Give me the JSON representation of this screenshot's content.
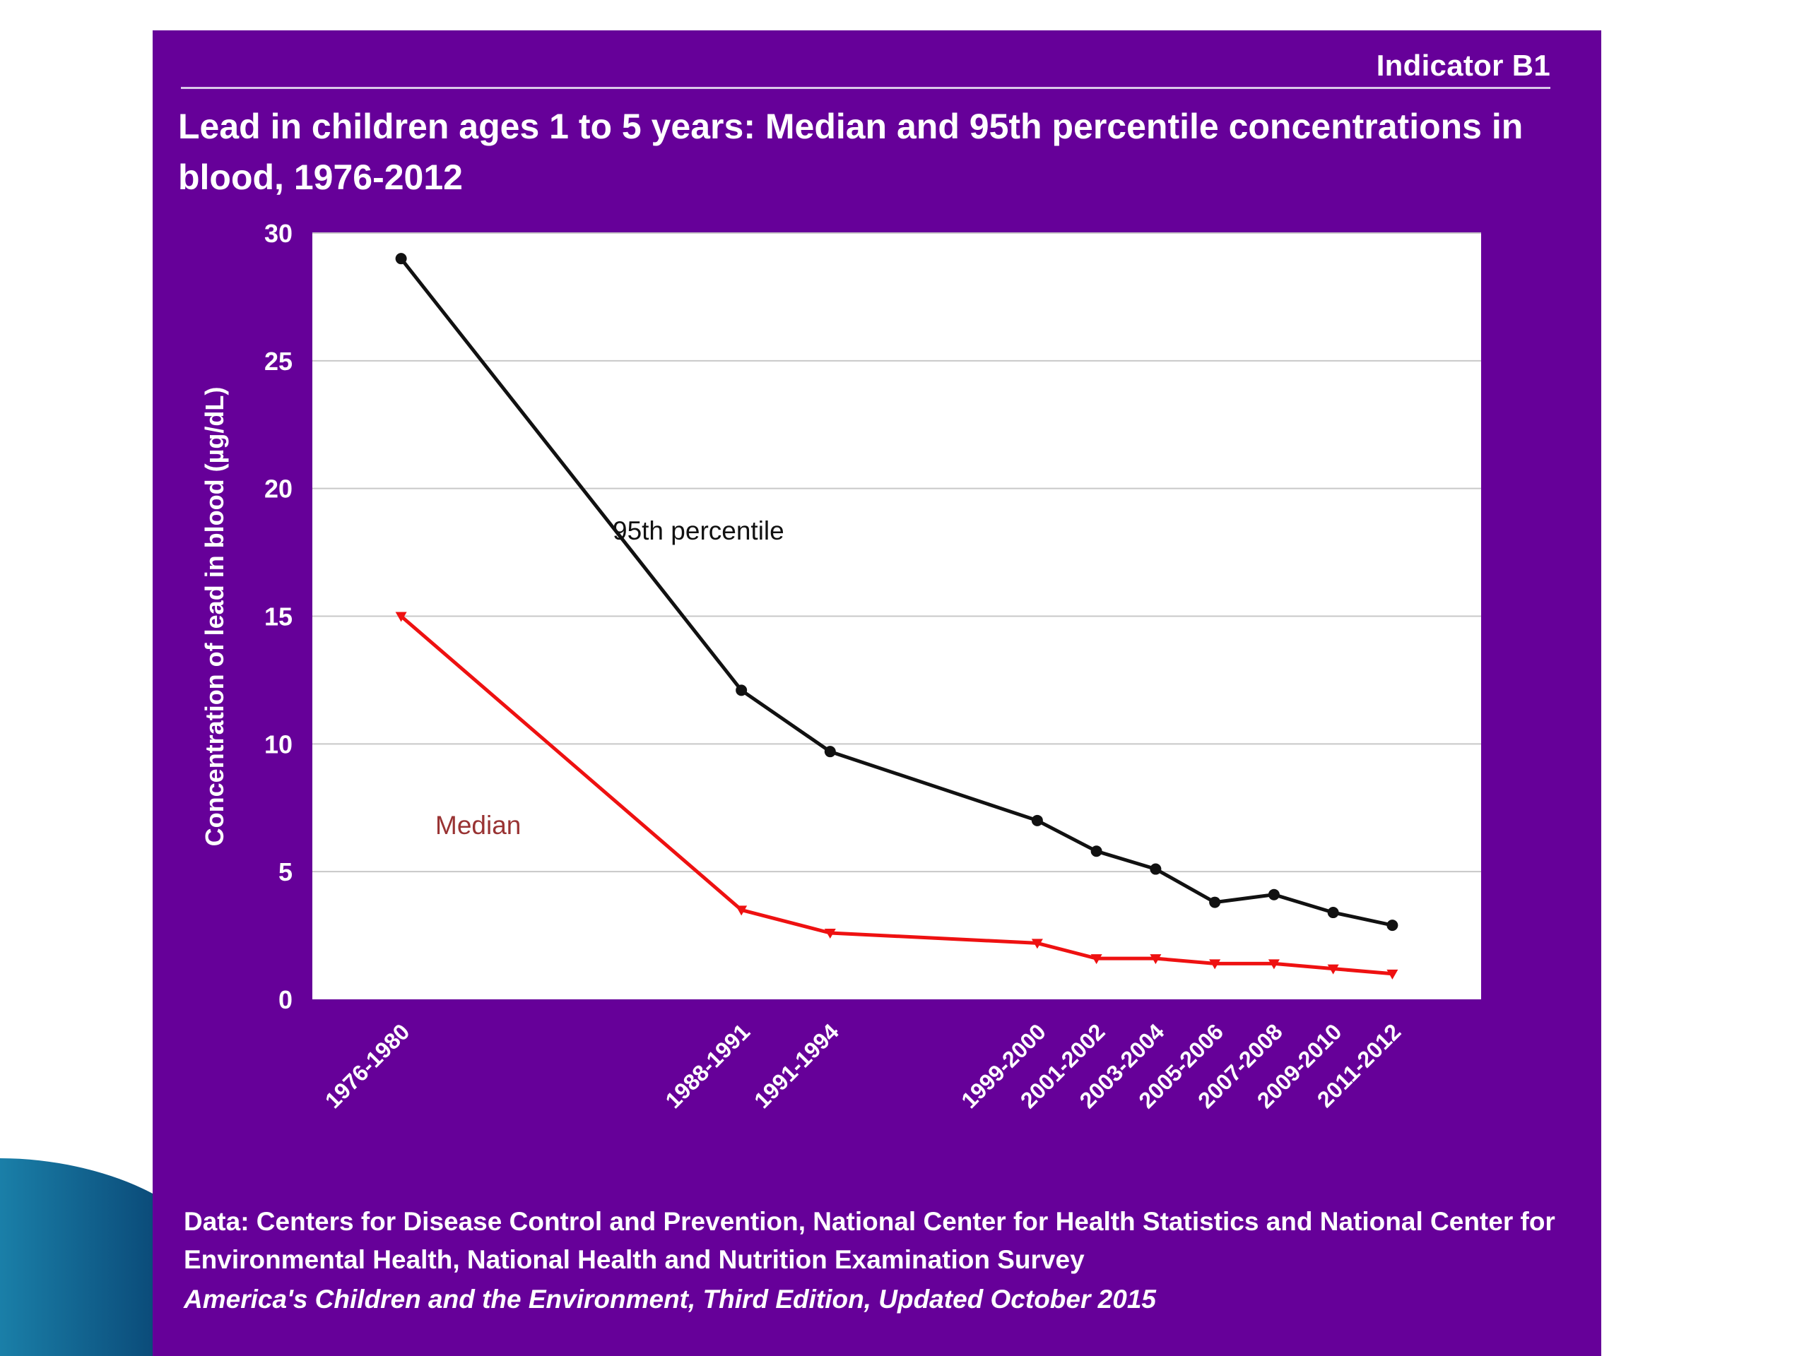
{
  "indicator": "Indicator B1",
  "title": "Lead in children ages 1 to 5 years: Median and 95th percentile concentrations in blood, 1976-2012",
  "source": "Data: Centers for Disease Control and Prevention, National Center for Health Statistics and National Center for Environmental Health, National Health and Nutrition Examination Survey",
  "edition": "America's Children and the Environment, Third Edition, Updated October 2015",
  "colors": {
    "panel_background": "#660099",
    "plot_background": "#ffffff",
    "percentile_line": "#111111",
    "median_line": "#ee1111",
    "median_label": "#993333"
  },
  "chart_data": {
    "type": "line",
    "ylabel": "Concentration of lead in blood (µg/dL)",
    "xlabel": "",
    "ylim": [
      0,
      30
    ],
    "yticks": [
      0,
      5,
      10,
      15,
      20,
      25,
      30
    ],
    "grid": true,
    "categories": [
      "1976-1980",
      "1988-1991",
      "1991-1994",
      "1999-2000",
      "2001-2002",
      "2003-2004",
      "2005-2006",
      "2007-2008",
      "2009-2010",
      "2011-2012"
    ],
    "x": [
      1978,
      1989.5,
      1992.5,
      1999.5,
      2001.5,
      2003.5,
      2005.5,
      2007.5,
      2009.5,
      2011.5
    ],
    "series": [
      {
        "name": "95th percentile",
        "values": [
          29.0,
          12.1,
          9.7,
          7.0,
          5.8,
          5.1,
          3.8,
          4.1,
          3.4,
          2.9
        ],
        "marker": "circle"
      },
      {
        "name": "Median",
        "values": [
          15.0,
          3.5,
          2.6,
          2.2,
          1.6,
          1.6,
          1.4,
          1.4,
          1.2,
          1.0
        ],
        "marker": "triangle-down"
      }
    ]
  }
}
